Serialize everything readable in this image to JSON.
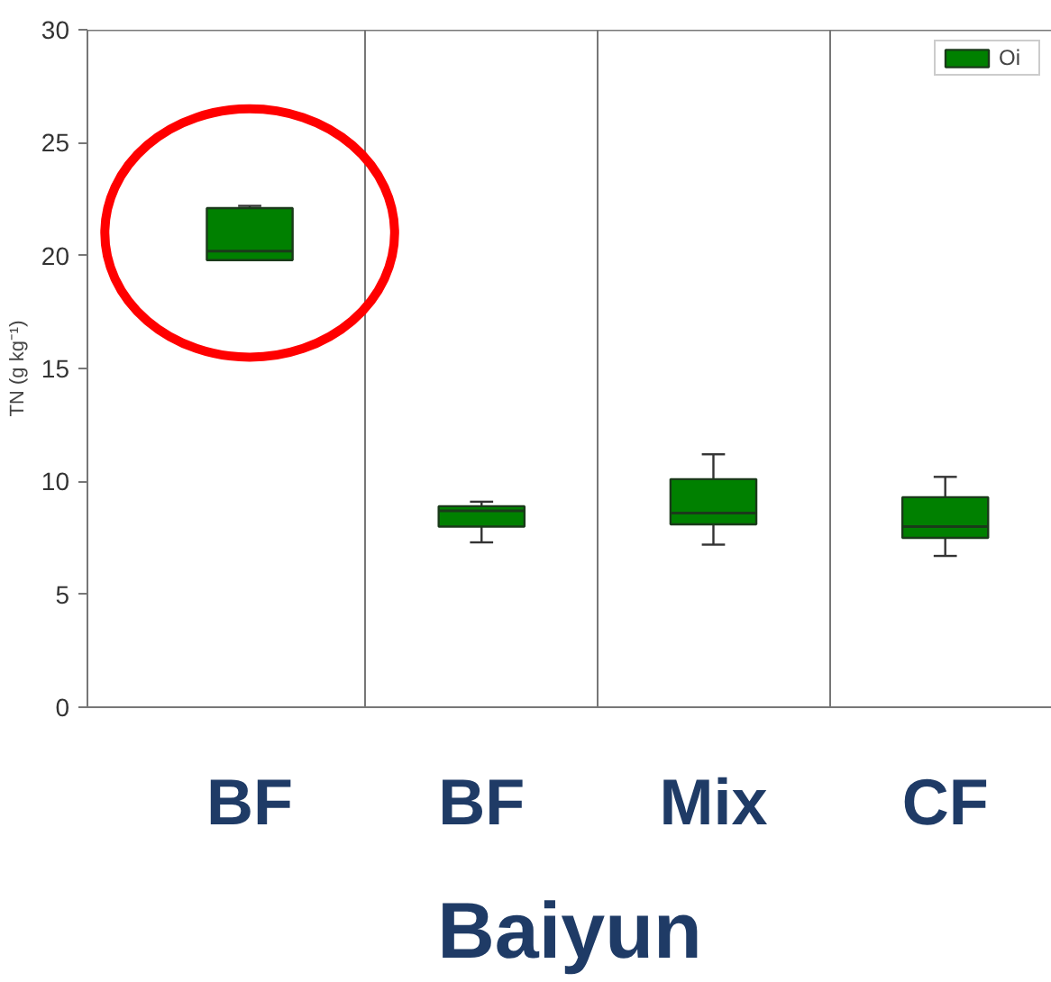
{
  "chart_data": {
    "type": "box",
    "xlabel": "Baiyun",
    "ylabel": "TN (g kg⁻¹)",
    "categories": [
      "BF",
      "BF",
      "Mix",
      "CF"
    ],
    "ylim": [
      0,
      30
    ],
    "yticks": [
      0,
      5,
      10,
      15,
      20,
      25,
      30
    ],
    "grid": "x",
    "legend": "top right",
    "series": [
      {
        "name": "Oi",
        "color": "#008000",
        "boxes": [
          {
            "low": 19.8,
            "q1": 19.8,
            "median": 20.2,
            "q3": 22.1,
            "high": 22.2
          },
          {
            "low": 7.3,
            "q1": 8.0,
            "median": 8.7,
            "q3": 8.9,
            "high": 9.1
          },
          {
            "low": 7.2,
            "q1": 8.1,
            "median": 8.6,
            "q3": 10.1,
            "high": 11.2
          },
          {
            "low": 6.7,
            "q1": 7.5,
            "median": 8.0,
            "q3": 9.3,
            "high": 10.2
          }
        ]
      }
    ]
  }
}
